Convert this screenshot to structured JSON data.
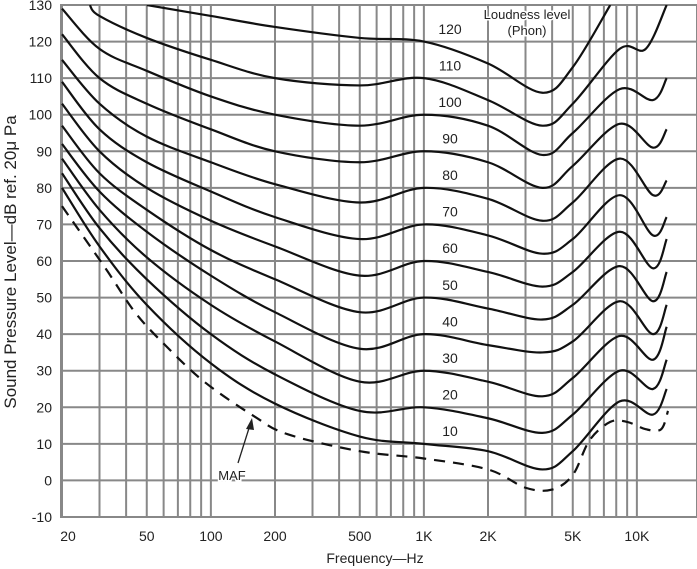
{
  "chart_data": {
    "type": "line",
    "title": "",
    "xlabel": "Frequency—Hz",
    "ylabel": "Sound Pressure Level—dB ref. 20μ Pa",
    "xscale": "log",
    "xlim": [
      20,
      20000
    ],
    "ylim": [
      -10,
      130
    ],
    "grid": true,
    "x_ticks": [
      {
        "value": 20,
        "label": "20"
      },
      {
        "value": 50,
        "label": "50"
      },
      {
        "value": 100,
        "label": "100"
      },
      {
        "value": 200,
        "label": "200"
      },
      {
        "value": 500,
        "label": "500"
      },
      {
        "value": 1000,
        "label": "1K"
      },
      {
        "value": 2000,
        "label": "2K"
      },
      {
        "value": 5000,
        "label": "5K"
      },
      {
        "value": 10000,
        "label": "10K"
      }
    ],
    "y_ticks": [
      "-10",
      "0",
      "10",
      "20",
      "30",
      "40",
      "50",
      "60",
      "70",
      "80",
      "90",
      "100",
      "110",
      "120",
      "130"
    ],
    "legend_title": "Loudness level",
    "legend_subtitle": "(Phon)",
    "series": [
      {
        "name": "10",
        "x": [
          20,
          30,
          50,
          100,
          200,
          500,
          1000,
          2000,
          3600,
          5000,
          8300,
          11900,
          13800
        ],
        "y": [
          80,
          64,
          48,
          32,
          21,
          12,
          10,
          8,
          3,
          8,
          21.6,
          18,
          25
        ]
      },
      {
        "name": "20",
        "x": [
          20,
          30,
          50,
          100,
          200,
          500,
          1000,
          2000,
          3600,
          5000,
          8300,
          11900,
          13800
        ],
        "y": [
          84,
          69,
          55,
          40,
          29,
          19,
          20,
          17,
          13,
          18,
          30,
          25,
          33
        ]
      },
      {
        "name": "30",
        "x": [
          20,
          30,
          50,
          100,
          200,
          500,
          1000,
          2000,
          3600,
          5000,
          8300,
          11900,
          13800
        ],
        "y": [
          88,
          74,
          61,
          48,
          38,
          27,
          30,
          27,
          23,
          28,
          39.5,
          33,
          42
        ]
      },
      {
        "name": "40",
        "x": [
          20,
          30,
          50,
          100,
          200,
          500,
          1000,
          2000,
          3600,
          5000,
          8300,
          11900,
          13800
        ],
        "y": [
          92,
          79,
          68,
          56,
          46,
          36,
          40,
          37,
          35,
          38,
          49,
          40,
          48
        ]
      },
      {
        "name": "50",
        "x": [
          20,
          30,
          50,
          100,
          200,
          500,
          1000,
          2000,
          3600,
          5000,
          8300,
          11900,
          13800
        ],
        "y": [
          97,
          84,
          74,
          63,
          55,
          46,
          50,
          47,
          44,
          48,
          58.6,
          49,
          57
        ]
      },
      {
        "name": "60",
        "x": [
          20,
          30,
          50,
          100,
          200,
          500,
          1000,
          2000,
          3600,
          5000,
          8300,
          11900,
          13800
        ],
        "y": [
          103,
          90,
          80,
          71,
          64,
          56,
          60,
          57,
          53,
          57,
          68,
          58,
          66
        ]
      },
      {
        "name": "70",
        "x": [
          20,
          30,
          50,
          100,
          200,
          500,
          1000,
          2000,
          3600,
          5000,
          8300,
          11900,
          13800
        ],
        "y": [
          109,
          96,
          87,
          79,
          72,
          66,
          70,
          67,
          62,
          66,
          78,
          67,
          72
        ]
      },
      {
        "name": "80",
        "x": [
          20,
          30,
          50,
          100,
          200,
          500,
          1000,
          2000,
          3600,
          5000,
          8300,
          11900,
          13800
        ],
        "y": [
          115,
          103,
          94,
          87,
          81,
          76,
          80,
          77,
          71,
          76,
          88,
          78,
          82
        ]
      },
      {
        "name": "90",
        "x": [
          20,
          30,
          50,
          100,
          200,
          500,
          1000,
          2000,
          3600,
          5000,
          8300,
          11900,
          13800
        ],
        "y": [
          122,
          110,
          103,
          96,
          90,
          87,
          90,
          87,
          80,
          86,
          97.5,
          91,
          96
        ]
      },
      {
        "name": "100",
        "x": [
          20,
          30,
          50,
          100,
          200,
          500,
          1000,
          2000,
          3600,
          5000,
          8300,
          11900,
          13800
        ],
        "y": [
          129,
          118,
          112,
          105,
          100,
          97,
          100,
          97,
          89,
          95,
          107,
          104,
          110
        ]
      },
      {
        "name": "110",
        "x": [
          27,
          30,
          50,
          100,
          200,
          500,
          1000,
          2000,
          3600,
          5000,
          8300,
          11000,
          13800
        ],
        "y": [
          130,
          127,
          121,
          115,
          110,
          108,
          110,
          104,
          97,
          103,
          118,
          118,
          130
        ]
      },
      {
        "name": "120",
        "x": [
          50,
          100,
          200,
          500,
          1000,
          2000,
          3600,
          5000,
          7500
        ],
        "y": [
          130,
          127,
          124,
          121,
          120,
          114,
          106,
          113,
          130
        ]
      }
    ],
    "threshold": {
      "name": "MAF",
      "style": "dashed",
      "x": [
        20,
        32,
        44,
        61,
        93,
        160,
        230,
        500,
        1000,
        2000,
        3000,
        4000,
        5000,
        6000,
        7500,
        9000,
        11000,
        13000,
        14000
      ],
      "y": [
        75,
        58,
        46,
        37,
        27,
        17.5,
        12.6,
        8,
        6,
        3,
        -2,
        -2.5,
        1.5,
        11,
        16,
        16,
        14,
        14,
        19
      ]
    },
    "annotations": [
      {
        "text": "MAF"
      }
    ]
  }
}
